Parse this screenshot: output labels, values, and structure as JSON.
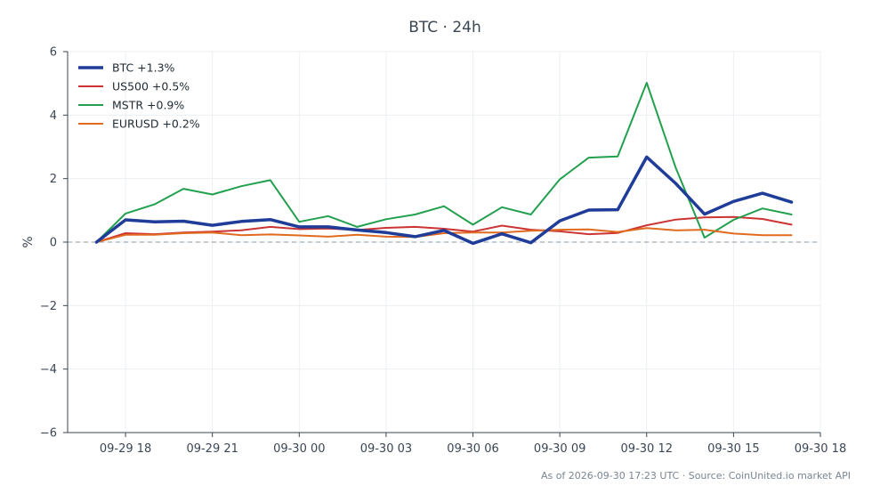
{
  "chart_data": {
    "type": "line",
    "title": "BTC · 24h",
    "ylabel": "%",
    "xlabel": "",
    "ylim": [
      -6,
      6
    ],
    "yticks": [
      6,
      4,
      2,
      0,
      -2,
      -4,
      -6
    ],
    "ytick_labels": [
      "6",
      "4",
      "2",
      "0",
      "−2",
      "−4",
      "−6"
    ],
    "x": [
      "09-29 17:00",
      "09-29 18:00",
      "09-29 19:00",
      "09-29 20:00",
      "09-29 21:00",
      "09-29 22:00",
      "09-29 23:00",
      "09-30 00:00",
      "09-30 01:00",
      "09-30 02:00",
      "09-30 03:00",
      "09-30 04:00",
      "09-30 05:00",
      "09-30 06:00",
      "09-30 07:00",
      "09-30 08:00",
      "09-30 09:00",
      "09-30 10:00",
      "09-30 11:00",
      "09-30 12:00",
      "09-30 13:00",
      "09-30 14:00",
      "09-30 15:00",
      "09-30 16:00",
      "09-30 17:00"
    ],
    "xlim": [
      "09-29 16:00",
      "09-30 18:00"
    ],
    "xtick_labels": [
      "09-29 18",
      "09-29 21",
      "09-30 00",
      "09-30 03",
      "09-30 06",
      "09-30 09",
      "09-30 12",
      "09-30 15",
      "09-30 18"
    ],
    "series": [
      {
        "name": "BTC +1.3%",
        "color": "#1f3c99",
        "values": [
          0.0,
          0.7,
          0.64,
          0.66,
          0.53,
          0.65,
          0.71,
          0.48,
          0.48,
          0.38,
          0.3,
          0.17,
          0.37,
          -0.04,
          0.26,
          -0.02,
          0.67,
          1.01,
          1.02,
          2.68,
          1.85,
          0.88,
          1.28,
          1.54,
          1.26
        ]
      },
      {
        "name": "US500 +0.5%",
        "color": "#cc3333",
        "values": [
          0.0,
          0.28,
          0.25,
          0.3,
          0.33,
          0.37,
          0.48,
          0.41,
          0.43,
          0.38,
          0.45,
          0.48,
          0.42,
          0.33,
          0.52,
          0.39,
          0.34,
          0.25,
          0.29,
          0.53,
          0.71,
          0.78,
          0.79,
          0.73,
          0.55
        ]
      },
      {
        "name": "MSTR +0.9%",
        "color": "#22a04e",
        "values": [
          0.0,
          0.9,
          1.19,
          1.68,
          1.5,
          1.76,
          1.95,
          0.64,
          0.82,
          0.48,
          0.72,
          0.87,
          1.13,
          0.55,
          1.1,
          0.87,
          1.98,
          2.66,
          2.7,
          5.02,
          2.35,
          0.14,
          0.7,
          1.06,
          0.87
        ]
      },
      {
        "name": "EURUSD +0.2%",
        "color": "#e06a1f",
        "values": [
          0.0,
          0.23,
          0.23,
          0.28,
          0.3,
          0.22,
          0.24,
          0.21,
          0.17,
          0.23,
          0.17,
          0.16,
          0.28,
          0.3,
          0.3,
          0.36,
          0.39,
          0.4,
          0.32,
          0.44,
          0.37,
          0.39,
          0.27,
          0.22,
          0.22
        ]
      }
    ],
    "grid": true,
    "legend_position": "top-left",
    "zero_line": true
  },
  "footer": "As of 2026-09-30 17:23 UTC · Source: CoinUnited.io market API"
}
